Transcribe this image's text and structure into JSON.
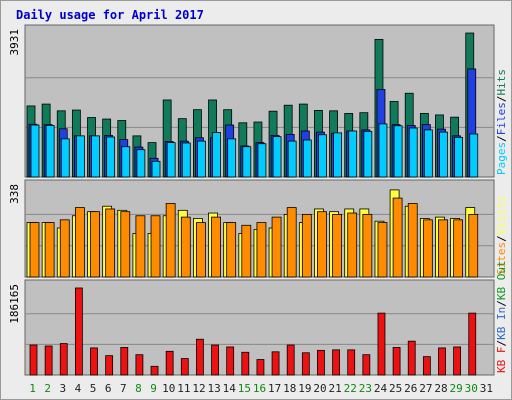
{
  "title": "Daily usage for April 2017",
  "colors": {
    "background": "#ececec",
    "panel": "#c0c0c0",
    "title": "#0000cc",
    "pages": "#00ccff",
    "files": "#2040e0",
    "hits": "#117a5a",
    "visits": "#ffff40",
    "sites": "#ff8c00",
    "kb_f": "#ee1111",
    "kb_in": "#2a6ad0",
    "kb_out": "#119922",
    "day_weekday": "#222222",
    "day_weekend": "#118811"
  },
  "chart_data": [
    {
      "type": "bar",
      "panel": "hits-files-pages",
      "ymax_label": "3931",
      "ylim": [
        0,
        3931
      ],
      "x": [
        1,
        2,
        3,
        4,
        5,
        6,
        7,
        8,
        9,
        10,
        11,
        12,
        13,
        14,
        15,
        16,
        17,
        18,
        19,
        20,
        21,
        22,
        23,
        24,
        25,
        26,
        27,
        28,
        29,
        30,
        31
      ],
      "series": [
        {
          "name": "Hits",
          "values": [
            1900,
            1950,
            1770,
            1790,
            1590,
            1550,
            1510,
            1100,
            920,
            2060,
            1560,
            1800,
            2060,
            1800,
            1450,
            1470,
            1760,
            1920,
            1950,
            1780,
            1770,
            1700,
            1720,
            3680,
            2020,
            2240,
            1700,
            1660,
            1600,
            3850,
            0
          ]
        },
        {
          "name": "Files",
          "values": [
            1410,
            1400,
            1290,
            1100,
            1100,
            1110,
            1000,
            800,
            500,
            950,
            960,
            1050,
            1050,
            1390,
            830,
            920,
            1110,
            1140,
            1230,
            1200,
            1170,
            1230,
            1260,
            2340,
            1400,
            1380,
            1400,
            1280,
            1100,
            2890,
            0
          ]
        },
        {
          "name": "Pages",
          "values": [
            1390,
            1380,
            1020,
            1100,
            1100,
            1070,
            810,
            730,
            420,
            920,
            910,
            960,
            1190,
            1020,
            810,
            890,
            1080,
            960,
            990,
            1130,
            1180,
            1230,
            1220,
            1420,
            1370,
            1310,
            1260,
            1200,
            1060,
            1150,
            0
          ]
        }
      ],
      "legend": [
        "Pages",
        "/",
        "Files",
        "/",
        "Hits"
      ]
    },
    {
      "type": "bar",
      "panel": "visits-sites",
      "ymax_label": "338",
      "ylim": [
        0,
        338
      ],
      "x": [
        1,
        2,
        3,
        4,
        5,
        6,
        7,
        8,
        9,
        10,
        11,
        12,
        13,
        14,
        15,
        16,
        17,
        18,
        19,
        20,
        21,
        22,
        23,
        24,
        25,
        26,
        27,
        28,
        29,
        30,
        31
      ],
      "series": [
        {
          "name": "Visits",
          "values": [
            200,
            200,
            180,
            225,
            240,
            260,
            245,
            160,
            160,
            225,
            245,
            215,
            235,
            200,
            160,
            175,
            180,
            230,
            200,
            250,
            240,
            250,
            250,
            205,
            320,
            260,
            215,
            220,
            215,
            255,
            0
          ]
        },
        {
          "name": "Sites",
          "values": [
            200,
            200,
            210,
            255,
            240,
            250,
            240,
            225,
            225,
            270,
            220,
            200,
            220,
            200,
            190,
            200,
            220,
            255,
            230,
            240,
            230,
            235,
            230,
            200,
            290,
            270,
            210,
            210,
            210,
            230,
            0
          ]
        }
      ],
      "legend": [
        "Sites",
        "/",
        "Visits"
      ]
    },
    {
      "type": "bar",
      "panel": "kbytes",
      "ymax_label": "186165",
      "ylim": [
        0,
        186165
      ],
      "x": [
        1,
        2,
        3,
        4,
        5,
        6,
        7,
        8,
        9,
        10,
        11,
        12,
        13,
        14,
        15,
        16,
        17,
        18,
        19,
        20,
        21,
        22,
        23,
        24,
        25,
        26,
        27,
        28,
        29,
        30,
        31
      ],
      "series": [
        {
          "name": "KB F",
          "values": [
            62000,
            60000,
            65000,
            180000,
            56000,
            40000,
            57000,
            42000,
            18000,
            49000,
            34000,
            74000,
            62000,
            58000,
            47000,
            32000,
            48000,
            62000,
            46000,
            51000,
            52000,
            52000,
            42000,
            128000,
            57000,
            70000,
            38000,
            56000,
            58000,
            128000,
            0
          ]
        }
      ],
      "legend": [
        "KB F",
        "/",
        "KB In",
        "/",
        "KB Out"
      ]
    }
  ],
  "days": [
    "1",
    "2",
    "3",
    "4",
    "5",
    "6",
    "7",
    "8",
    "9",
    "10",
    "11",
    "12",
    "13",
    "14",
    "15",
    "16",
    "17",
    "18",
    "19",
    "20",
    "21",
    "22",
    "23",
    "24",
    "25",
    "26",
    "27",
    "28",
    "29",
    "30",
    "31"
  ],
  "weekend_days": [
    1,
    2,
    8,
    9,
    15,
    16,
    22,
    23,
    29,
    30
  ]
}
